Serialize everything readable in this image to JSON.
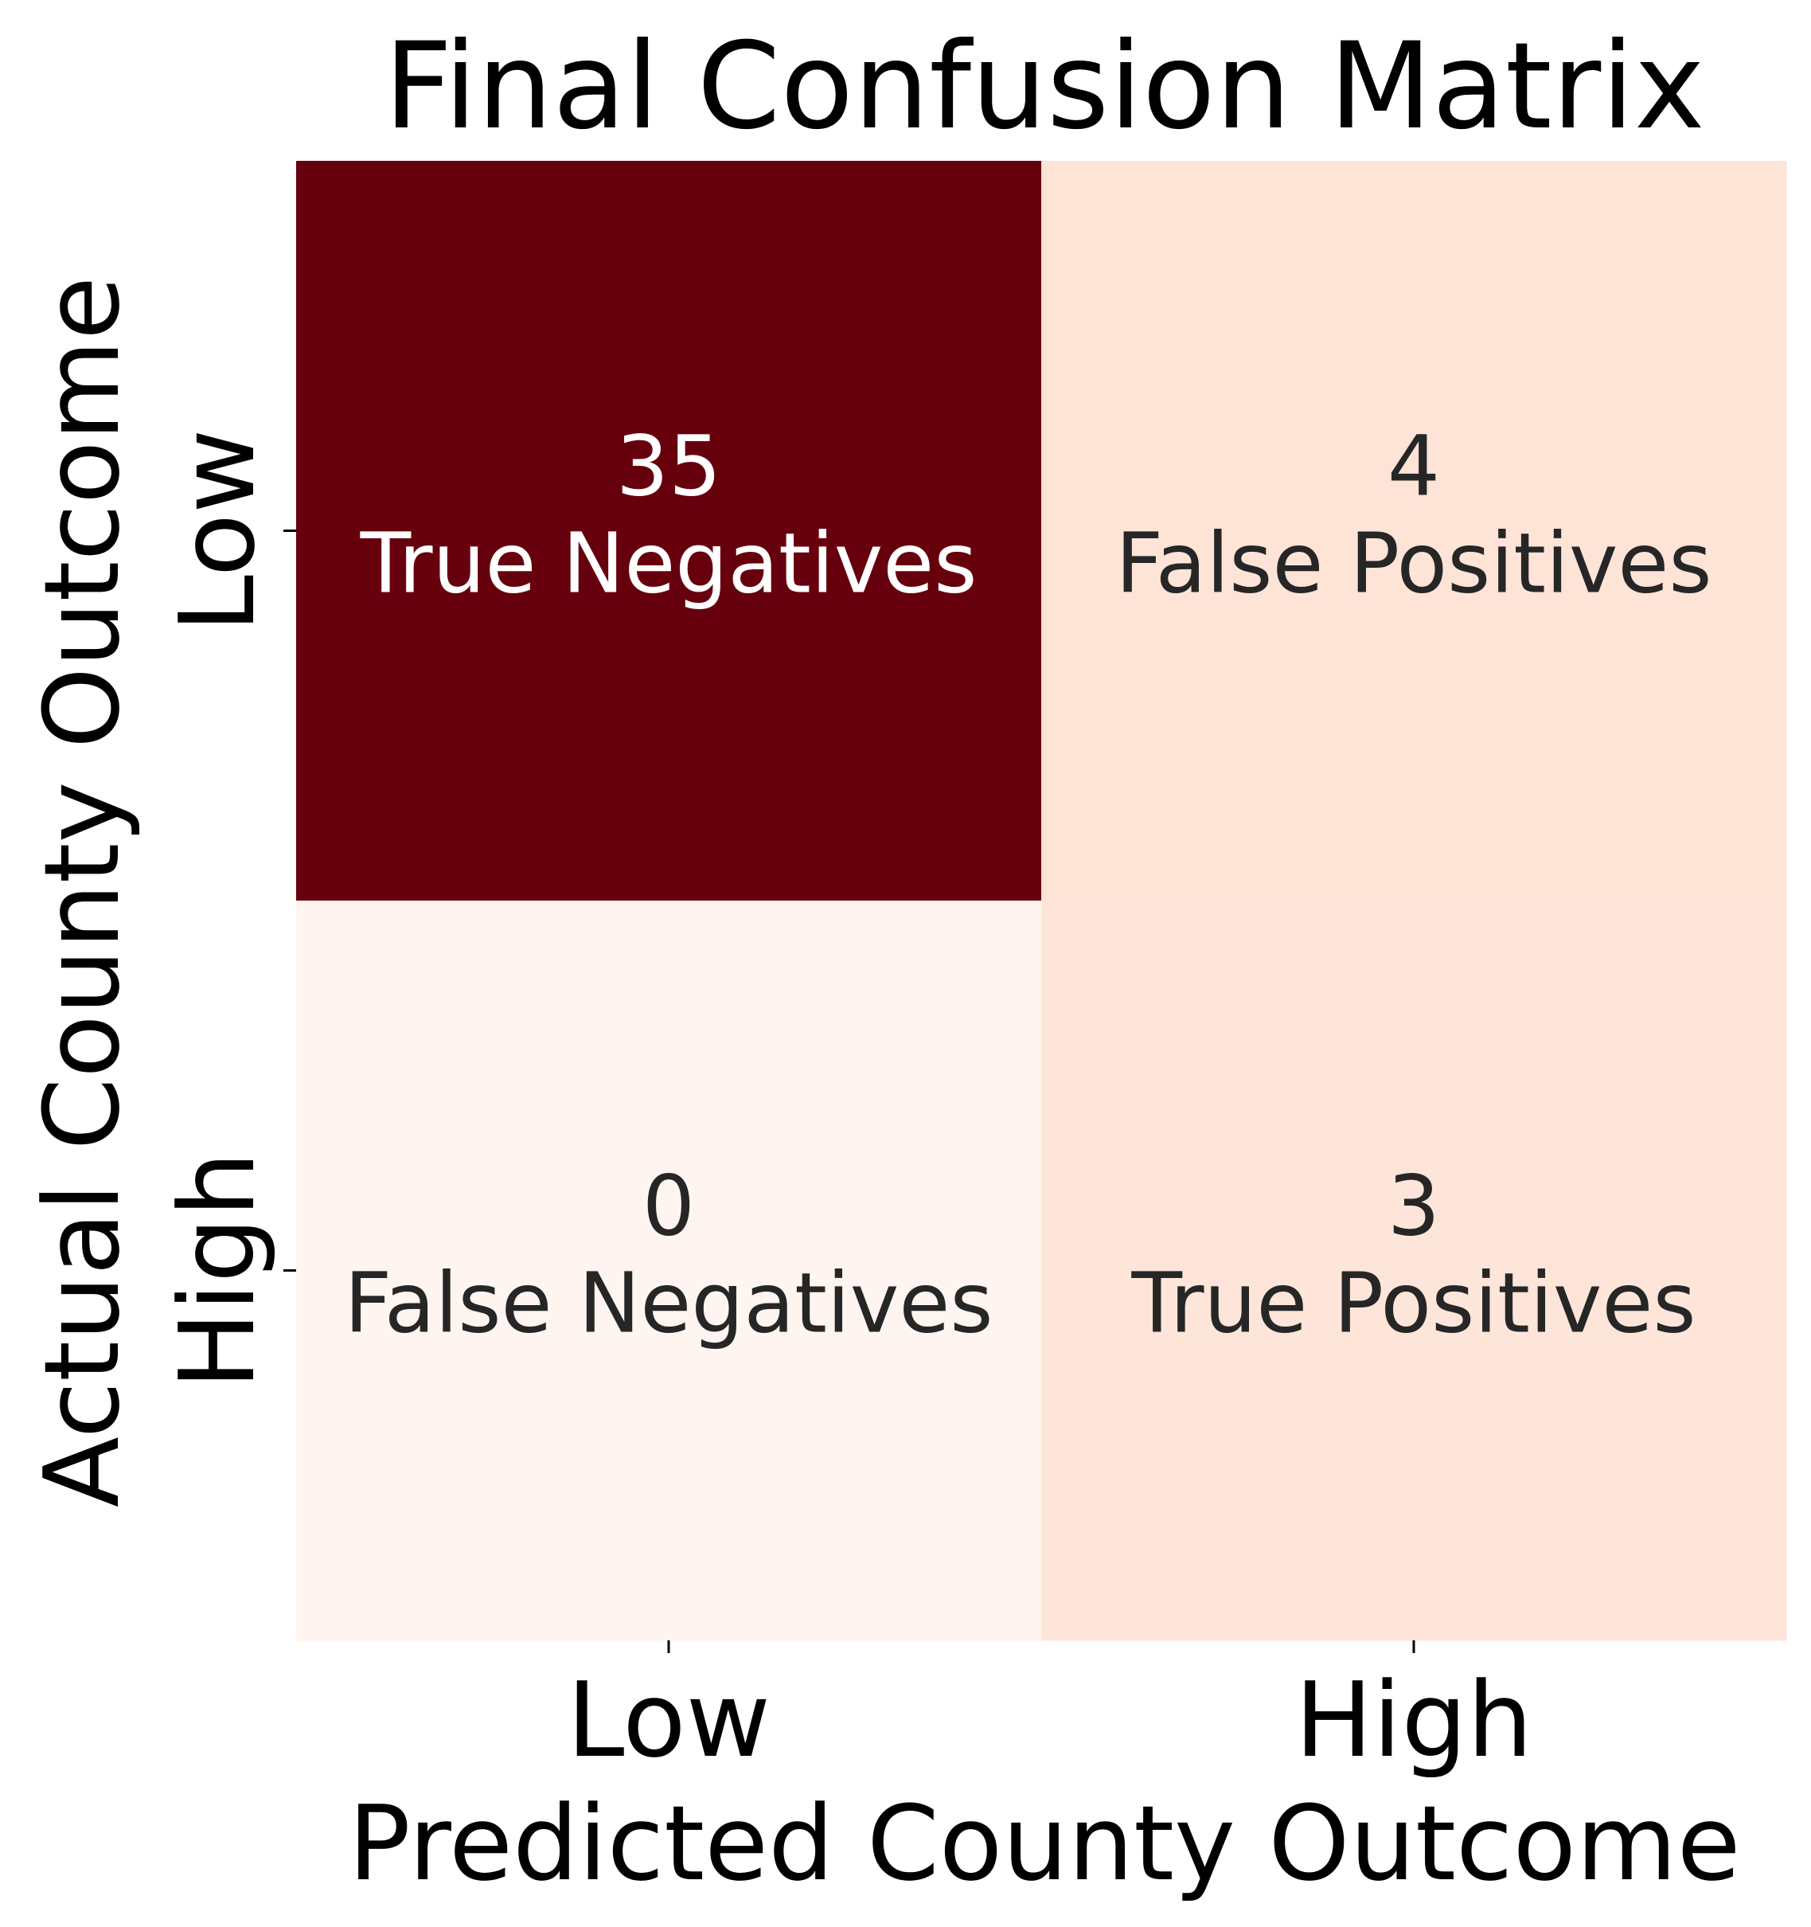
{
  "chart_data": {
    "type": "heatmap",
    "title": "Final Confusion Matrix",
    "xlabel": "Predicted County Outcome",
    "ylabel": "Actual County Outcome",
    "x_categories": [
      "Low",
      "High"
    ],
    "y_categories": [
      "Low",
      "High"
    ],
    "colormap": "Reds",
    "value_range": [
      0,
      35
    ],
    "colorbar": false,
    "grid": false,
    "cells": [
      {
        "row": 0,
        "col": 0,
        "value": 35,
        "label": "True Negatives",
        "color": "#67000d",
        "text_color": "#ffffff"
      },
      {
        "row": 0,
        "col": 1,
        "value": 4,
        "label": "False Positives",
        "color": "#fee3d7",
        "text_color": "#262626"
      },
      {
        "row": 1,
        "col": 0,
        "value": 0,
        "label": "False Negatives",
        "color": "#fff5f0",
        "text_color": "#262626"
      },
      {
        "row": 1,
        "col": 1,
        "value": 3,
        "label": "True Positives",
        "color": "#fee5d9",
        "text_color": "#262626"
      }
    ]
  }
}
